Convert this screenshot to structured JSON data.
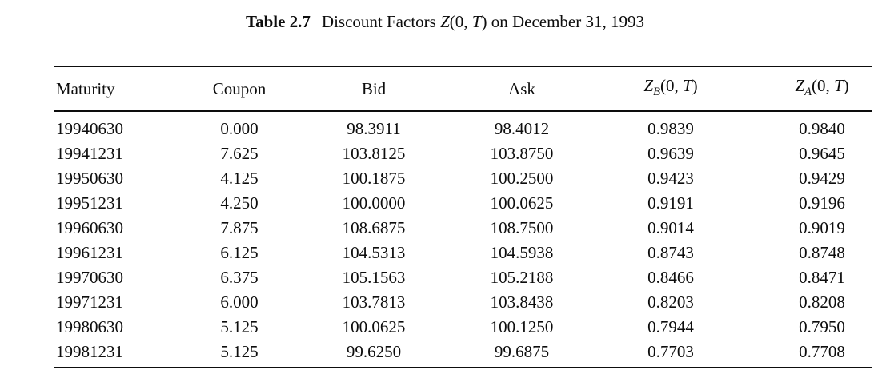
{
  "page": {
    "background": "#ffffff",
    "text_color": "#0d0d0d"
  },
  "caption": {
    "label": "Table 2.7",
    "body_prefix": "Discount Factors ",
    "math": {
      "var": "Z",
      "open": "(0, ",
      "t_var": "T",
      "close": ")"
    },
    "body_suffix": " on December 31, 1993"
  },
  "table": {
    "columns": {
      "maturity": "Maturity",
      "coupon": "Coupon",
      "bid": "Bid",
      "ask": "Ask",
      "zb": {
        "var": "Z",
        "sub": "B",
        "open": "(0, ",
        "t_var": "T",
        "close": ")"
      },
      "za": {
        "var": "Z",
        "sub": "A",
        "open": "(0, ",
        "t_var": "T",
        "close": ")"
      }
    },
    "rows": [
      [
        "19940630",
        "0.000",
        "98.3911",
        "98.4012",
        "0.9839",
        "0.9840"
      ],
      [
        "19941231",
        "7.625",
        "103.8125",
        "103.8750",
        "0.9639",
        "0.9645"
      ],
      [
        "19950630",
        "4.125",
        "100.1875",
        "100.2500",
        "0.9423",
        "0.9429"
      ],
      [
        "19951231",
        "4.250",
        "100.0000",
        "100.0625",
        "0.9191",
        "0.9196"
      ],
      [
        "19960630",
        "7.875",
        "108.6875",
        "108.7500",
        "0.9014",
        "0.9019"
      ],
      [
        "19961231",
        "6.125",
        "104.5313",
        "104.5938",
        "0.8743",
        "0.8748"
      ],
      [
        "19970630",
        "6.375",
        "105.1563",
        "105.2188",
        "0.8466",
        "0.8471"
      ],
      [
        "19971231",
        "6.000",
        "103.7813",
        "103.8438",
        "0.8203",
        "0.8208"
      ],
      [
        "19980630",
        "5.125",
        "100.0625",
        "100.1250",
        "0.7944",
        "0.7950"
      ],
      [
        "19981231",
        "5.125",
        "99.6250",
        "99.6875",
        "0.7703",
        "0.7708"
      ]
    ]
  }
}
